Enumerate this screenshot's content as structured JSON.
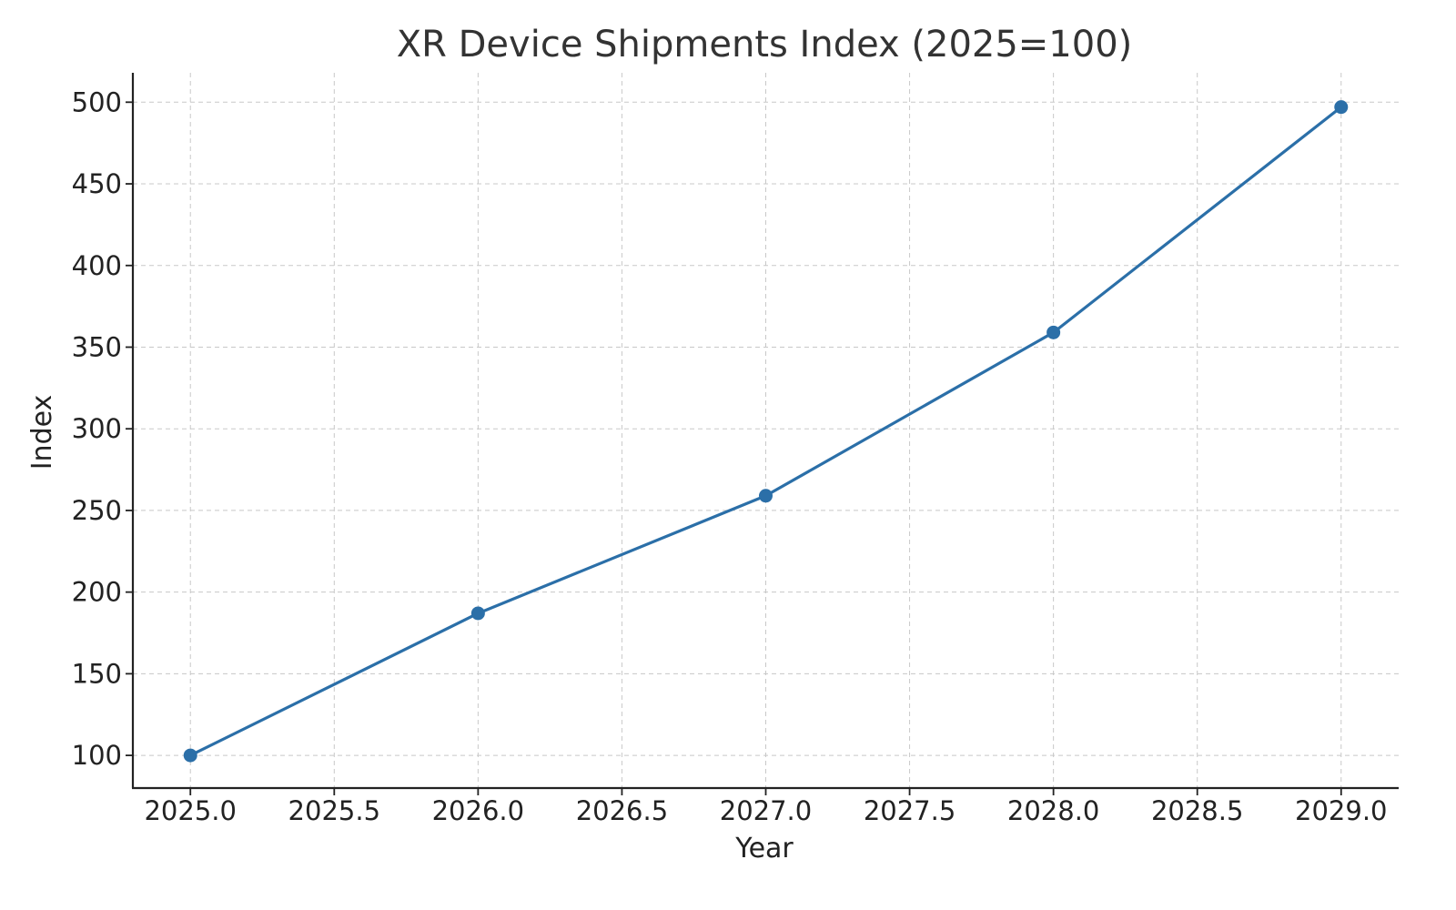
{
  "chart_data": {
    "type": "line",
    "title": "XR Device Shipments Index (2025=100)",
    "xlabel": "Year",
    "ylabel": "Index",
    "x": [
      2025,
      2026,
      2027,
      2028,
      2029
    ],
    "series": [
      {
        "values": [
          100,
          187,
          259,
          359,
          497
        ]
      }
    ],
    "xlim": [
      2024.8,
      2029.2
    ],
    "ylim": [
      80,
      518
    ],
    "x_ticks": [
      "2025.0",
      "2025.5",
      "2026.0",
      "2026.5",
      "2027.0",
      "2027.5",
      "2028.0",
      "2028.5",
      "2029.0"
    ],
    "y_ticks": [
      "100",
      "150",
      "200",
      "250",
      "300",
      "350",
      "400",
      "450",
      "500"
    ],
    "grid": true,
    "line_color": "#2b6fa8",
    "marker_color": "#2b6fa8"
  }
}
